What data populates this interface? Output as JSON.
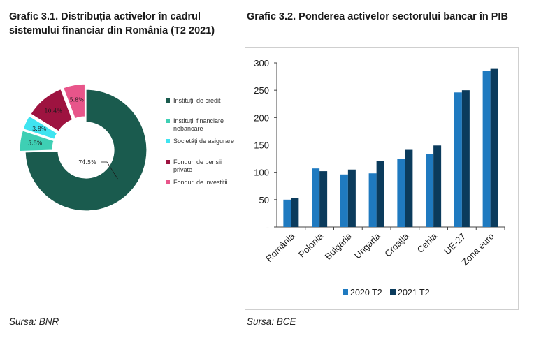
{
  "left_chart": {
    "title_line1": "Grafic 3.1. Distribuția activelor în cadrul",
    "title_line2": "sistemului financiar din România (T2 2021)",
    "source": "Sursa: BNR"
  },
  "right_chart": {
    "title": "Grafic 3.2. Ponderea activelor sectorului bancar în PIB",
    "source": "Sursa: BCE"
  },
  "chart_data": [
    {
      "type": "pie",
      "variant": "donut",
      "categories": [
        [
          "Instituții de credit"
        ],
        [
          "Instituții financiare",
          "nebancare"
        ],
        [
          "Societăți de asigurare"
        ],
        [
          "Fonduri de pensii",
          "private"
        ],
        [
          "Fonduri de investiții"
        ]
      ],
      "values": [
        74.5,
        5.5,
        3.8,
        10.4,
        5.8
      ],
      "value_labels": [
        "74.5%",
        "5.5%",
        "3.8%",
        "10.4%",
        "5.8%"
      ],
      "colors": [
        "#1a5b4e",
        "#3ecfb4",
        "#3fe4f0",
        "#9e1340",
        "#e8558a"
      ],
      "legend_position": "right"
    },
    {
      "type": "bar",
      "categories": [
        "România",
        "Polonia",
        "Bulgaria",
        "Ungaria",
        "Croația",
        "Cehia",
        "UE-27",
        "Zona euro"
      ],
      "series": [
        {
          "name": "2020 T2",
          "values": [
            50,
            107,
            96,
            98,
            124,
            133,
            246,
            285
          ],
          "color": "#1f7ac0"
        },
        {
          "name": "2021 T2",
          "values": [
            53,
            102,
            105,
            120,
            141,
            149,
            250,
            289
          ],
          "color": "#0b3b5c"
        }
      ],
      "y_ticks": [
        "-",
        "50",
        "100",
        "150",
        "200",
        "250",
        "300"
      ],
      "ylim": [
        0,
        300
      ],
      "grid": false,
      "legend_position": "bottom"
    }
  ]
}
